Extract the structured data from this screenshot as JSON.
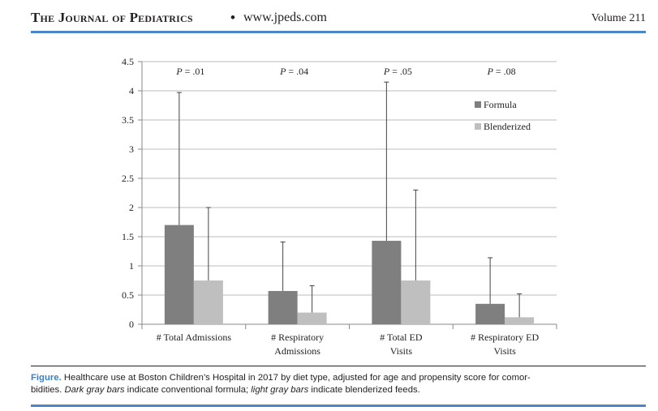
{
  "header": {
    "journal_title": "The Journal of Pediatrics",
    "separator": "•",
    "url": "www.jpeds.com",
    "volume": "Volume 211"
  },
  "colors": {
    "accent_rule": "#4a86c8",
    "caption_label": "#3a7fc4",
    "formula_bar": "#7f7f7f",
    "blenderized_bar": "#bfbfbf"
  },
  "chart_data": {
    "type": "bar",
    "title": "",
    "xlabel": "",
    "ylabel": "",
    "ylim": [
      0,
      4.5
    ],
    "yticks": [
      "0",
      "0.5",
      "1",
      "1.5",
      "2",
      "2.5",
      "3",
      "3.5",
      "4",
      "4.5"
    ],
    "grid": true,
    "legend_position": "top-right",
    "categories": [
      [
        "# Total Admissions"
      ],
      [
        "# Respiratory",
        "Admissions"
      ],
      [
        "# Total ED",
        "Visits"
      ],
      [
        "# Respiratory ED",
        "Visits"
      ]
    ],
    "series": [
      {
        "name": "Formula",
        "values": [
          1.7,
          0.57,
          1.43,
          0.35
        ],
        "error_upper": [
          3.97,
          1.41,
          4.15,
          1.14
        ]
      },
      {
        "name": "Blenderized",
        "values": [
          0.75,
          0.2,
          0.75,
          0.12
        ],
        "error_upper": [
          2.0,
          0.66,
          2.3,
          0.52
        ]
      }
    ],
    "annotations": [
      "P = .01",
      "P = .04",
      "P = .05",
      "P = .08"
    ]
  },
  "caption": {
    "label": "Figure.",
    "line1": "Healthcare use at Boston Children’s Hospital in 2017 by diet type, adjusted for age and propensity score for comor-",
    "line2_start": "bidities. ",
    "line2_dark": "Dark gray bars",
    "line2_mid": " indicate conventional formula; ",
    "line2_light": "light gray bars",
    "line2_end": " indicate blenderized feeds."
  }
}
